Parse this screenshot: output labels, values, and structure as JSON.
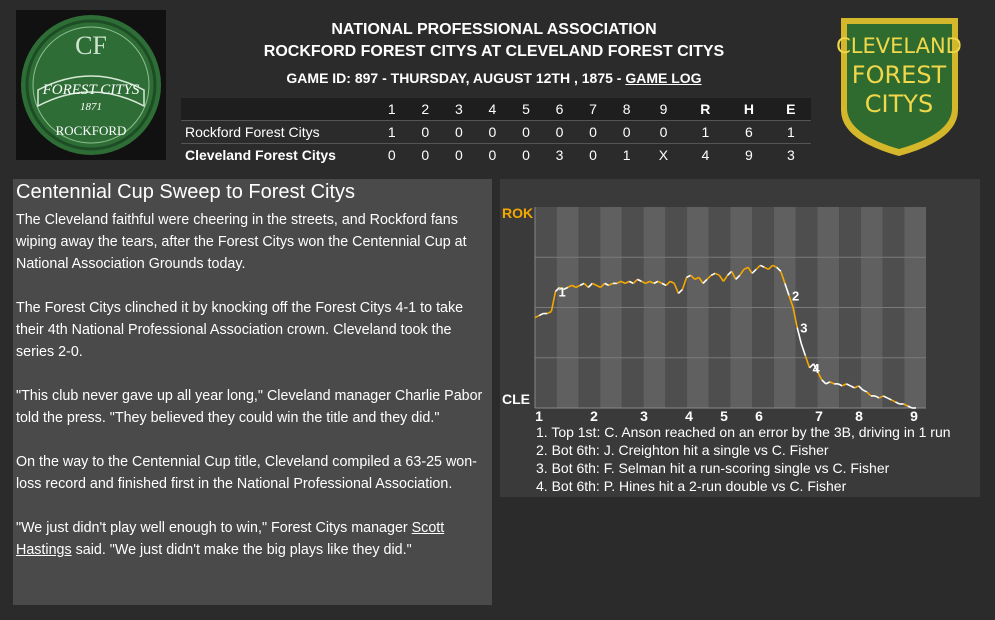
{
  "header": {
    "league": "NATIONAL PROFESSIONAL ASSOCIATION",
    "matchup": "ROCKFORD FOREST CITYS AT CLEVELAND FOREST CITYS",
    "game_info": "GAME ID: 897 - THURSDAY, AUGUST 12TH , 1875 - ",
    "game_log_link": "GAME LOG"
  },
  "logos": {
    "left": {
      "top_text": "FOREST CITYS",
      "year": "1871",
      "bottom_text": "ROCKFORD",
      "monogram": "CF"
    },
    "right": {
      "line1": "CLEVELAND",
      "line2": "FOREST",
      "line3": "CITYS"
    }
  },
  "linescore": {
    "columns": [
      "1",
      "2",
      "3",
      "4",
      "5",
      "6",
      "7",
      "8",
      "9",
      "R",
      "H",
      "E"
    ],
    "rows": [
      {
        "team": "Rockford Forest Citys",
        "scores": [
          "1",
          "0",
          "0",
          "0",
          "0",
          "0",
          "0",
          "0",
          "0",
          "1",
          "6",
          "1"
        ]
      },
      {
        "team": "Cleveland Forest Citys",
        "scores": [
          "0",
          "0",
          "0",
          "0",
          "0",
          "3",
          "0",
          "1",
          "X",
          "4",
          "9",
          "3"
        ]
      }
    ]
  },
  "article": {
    "title": "Centennial Cup Sweep to Forest Citys",
    "p1": "The Cleveland faithful were cheering in the streets, and Rockford fans wiping away the tears, after the Forest Citys won the Centennial Cup at National Association Grounds today.",
    "p2": "The Forest Citys clinched it by knocking off the Forest Citys 4-1 to take their 4th National Professional Association crown. Cleveland took the series 2-0.",
    "p3": "\"This club never gave up all year long,\" Cleveland manager Charlie Pabor told the press. \"They believed they could win the title and they did.\"",
    "p4": "On the way to the Centennial Cup title, Cleveland compiled a 63-25 won-loss record and finished first in the National Professional Association.",
    "p5_pre": "\"We just didn't play well enough to win,\" Forest Citys manager ",
    "p5_link": "Scott Hastings",
    "p5_post": " said. \"We just didn't make the big plays like they did.\""
  },
  "win_probability": {
    "top_label": "ROK",
    "bottom_label": "CLE",
    "inning_labels": [
      "1",
      "2",
      "3",
      "4",
      "5",
      "6",
      "7",
      "8",
      "9"
    ],
    "markers": [
      "1",
      "2",
      "3",
      "4"
    ],
    "legend": [
      "1. Top 1st: C. Anson reached on an error by the 3B, driving in 1 run",
      "2. Bot 6th: J. Creighton hit a single vs C. Fisher",
      "3. Bot 6th: F. Selman hit a run-scoring single vs C. Fisher",
      "4. Bot 6th: P. Hines hit a 2-run double vs C. Fisher"
    ],
    "colors": {
      "top_team": "#f5a800",
      "bottom_team": "#ffffff",
      "panel": "#3a3a3a"
    },
    "series": [
      0.45,
      0.46,
      0.47,
      0.47,
      0.48,
      0.58,
      0.6,
      0.59,
      0.6,
      0.61,
      0.6,
      0.61,
      0.62,
      0.6,
      0.62,
      0.61,
      0.6,
      0.62,
      0.61,
      0.62,
      0.62,
      0.63,
      0.62,
      0.63,
      0.62,
      0.64,
      0.63,
      0.62,
      0.63,
      0.62,
      0.63,
      0.62,
      0.61,
      0.63,
      0.62,
      0.57,
      0.59,
      0.65,
      0.66,
      0.64,
      0.65,
      0.62,
      0.64,
      0.66,
      0.67,
      0.66,
      0.63,
      0.66,
      0.68,
      0.64,
      0.66,
      0.69,
      0.7,
      0.67,
      0.69,
      0.71,
      0.7,
      0.69,
      0.71,
      0.7,
      0.68,
      0.62,
      0.56,
      0.5,
      0.4,
      0.32,
      0.26,
      0.2,
      0.22,
      0.18,
      0.14,
      0.12,
      0.13,
      0.12,
      0.12,
      0.11,
      0.12,
      0.11,
      0.1,
      0.11,
      0.09,
      0.08,
      0.06,
      0.06,
      0.05,
      0.06,
      0.05,
      0.04,
      0.03,
      0.02,
      0.02,
      0.01,
      0.0,
      0.0
    ]
  }
}
